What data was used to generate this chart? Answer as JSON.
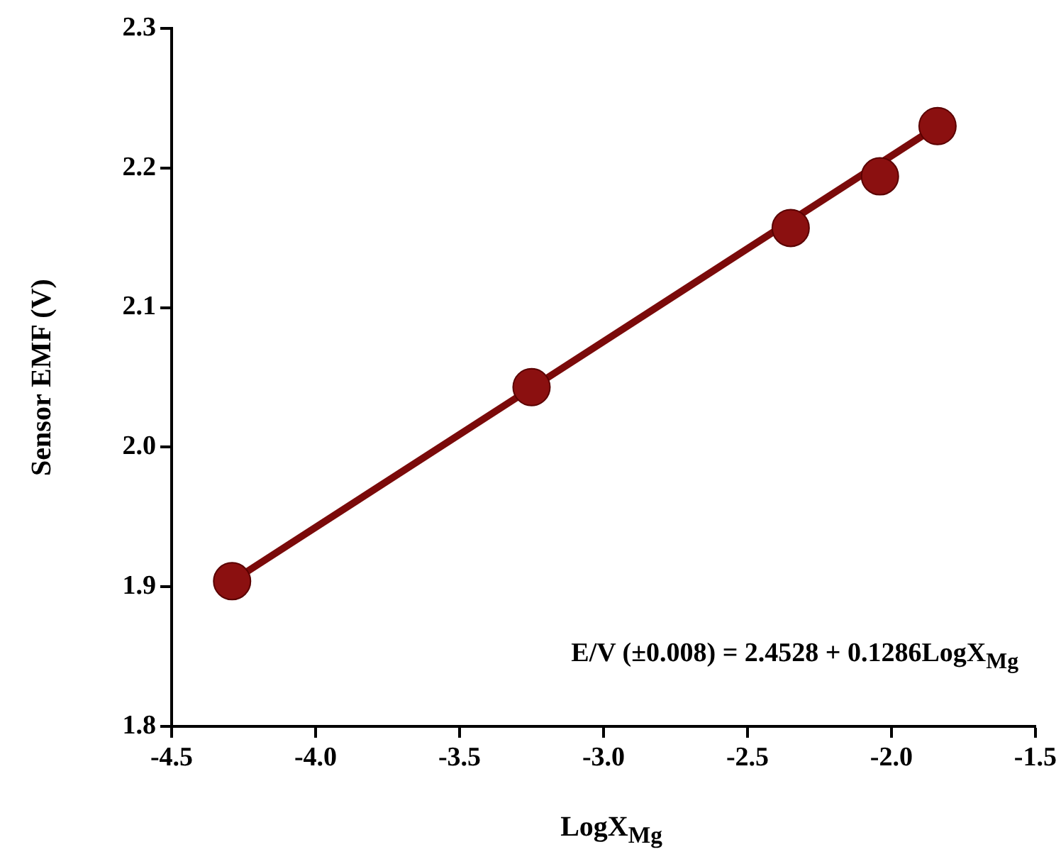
{
  "chart_data": {
    "type": "scatter",
    "xlabel": "LogX$_{Mg}$",
    "ylabel": "Sensor EMF (V)",
    "xlim": [
      -4.5,
      -1.5
    ],
    "xticks": [
      -4.5,
      {
        "value": -4,
        "label": "-4.0"
      },
      -3.5,
      {
        "value": -3,
        "label": "-3.0"
      },
      -2.5,
      {
        "value": -2,
        "label": "-2.0"
      },
      -1.5
    ],
    "ylim": [
      1.8,
      2.3
    ],
    "yticks": [
      1.8,
      1.9,
      {
        "value": 2,
        "label": "2.0"
      },
      2.1,
      2.2,
      2.3
    ],
    "grid": false,
    "legend": false,
    "marker": "circle",
    "series": [
      {
        "type": "line",
        "marker": "none",
        "color": "#7b0a0a",
        "x": [
          -4.29,
          -1.84
        ],
        "values": [
          1.904,
          2.23
        ]
      },
      {
        "color": "#8b1010",
        "x": [
          -4.29,
          -3.25,
          -2.35,
          -2.04,
          -1.84
        ],
        "values": [
          1.904,
          2.043,
          2.157,
          2.194,
          2.23
        ]
      }
    ],
    "annotations": [
      "E/V (±0.008) = 2.4528 + 0.1286LogX$_{Mg}$"
    ]
  }
}
